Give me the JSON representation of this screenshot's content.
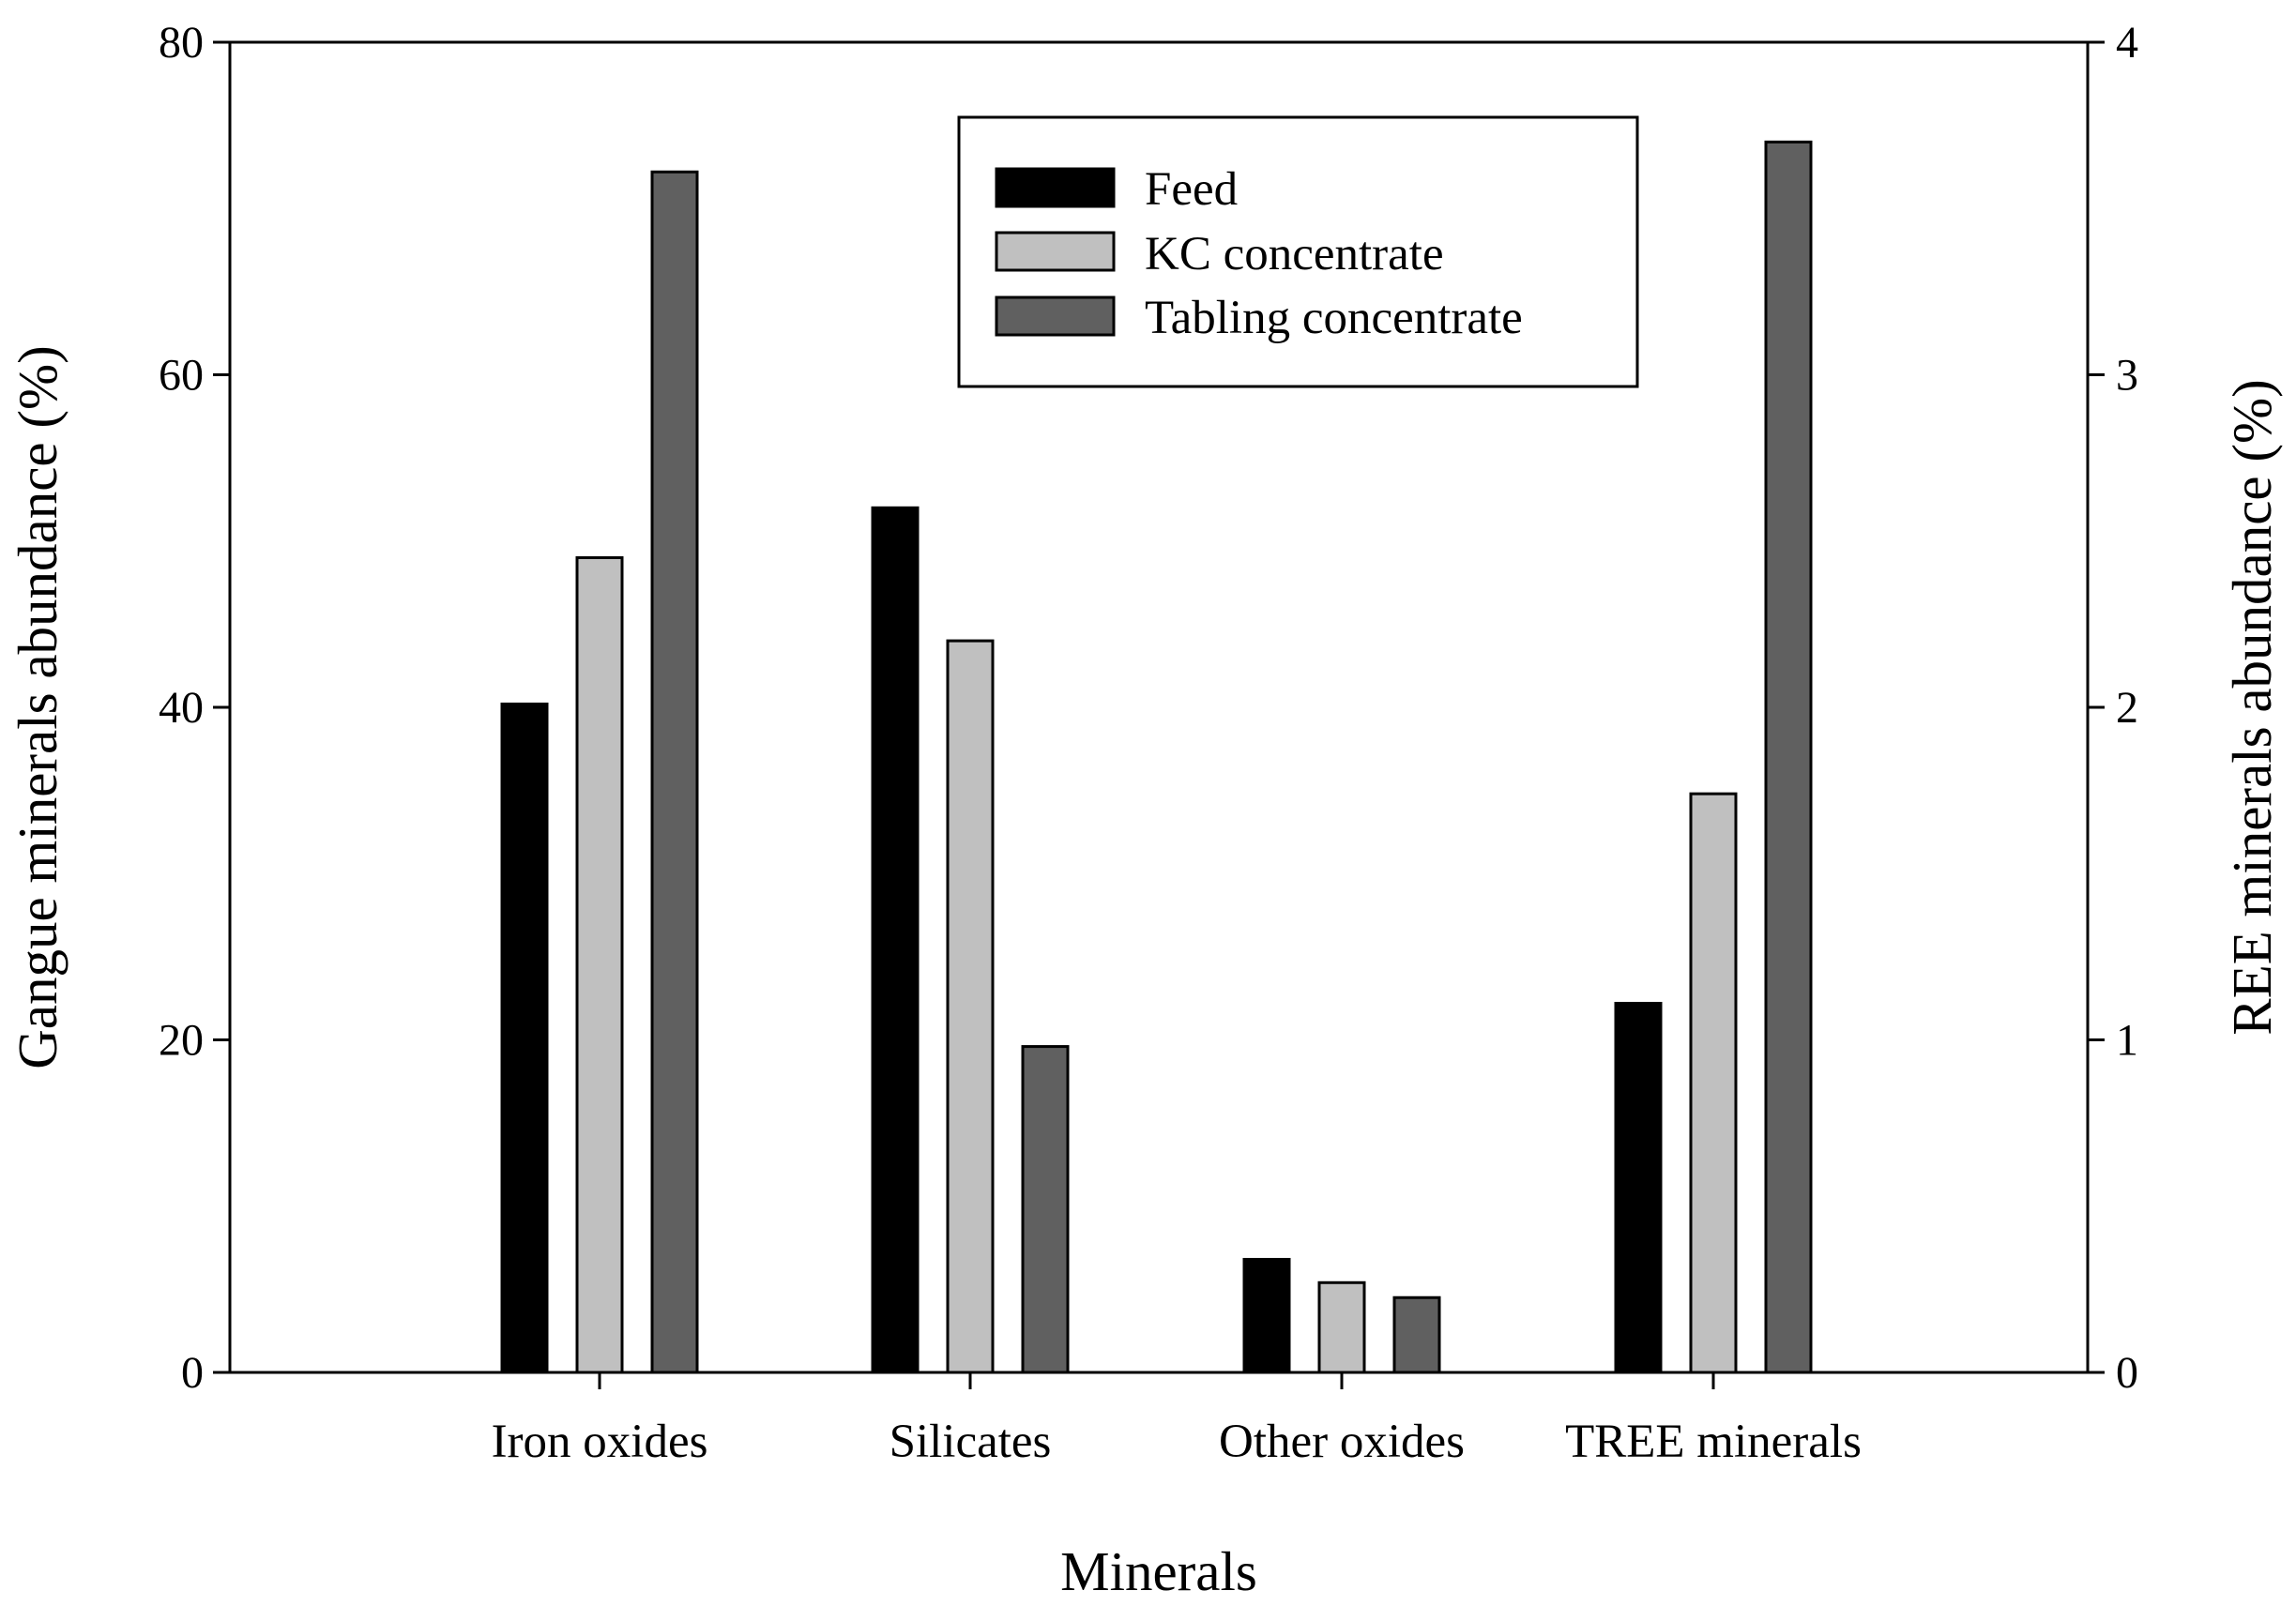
{
  "chart_data": {
    "type": "bar",
    "title": "",
    "xlabel": "Minerals",
    "ylabel": "Gangue minerals abundance (%)",
    "y2label": "REE minerals abundance (%)",
    "ylim": [
      0,
      80
    ],
    "y2lim": [
      0,
      4
    ],
    "yticks": [
      "0",
      "20",
      "40",
      "60",
      "80"
    ],
    "y2ticks": [
      "0",
      "1",
      "2",
      "3",
      "4"
    ],
    "grid": false,
    "legend_position": "top-center",
    "categories": [
      "Iron oxides",
      "Silicates",
      "Other oxides",
      "TREE minerals"
    ],
    "category_axis": [
      "left",
      "left",
      "left",
      "right"
    ],
    "series": [
      {
        "name": "Feed",
        "color": "#000000",
        "values": [
          40.2,
          52.0,
          6.8,
          1.11
        ]
      },
      {
        "name": "KC concentrate",
        "color": "#c0c0c0",
        "values": [
          49.0,
          44.0,
          5.4,
          1.74
        ]
      },
      {
        "name": "Tabling concentrate",
        "color": "#606060",
        "values": [
          72.2,
          19.6,
          4.5,
          3.7
        ]
      }
    ]
  }
}
